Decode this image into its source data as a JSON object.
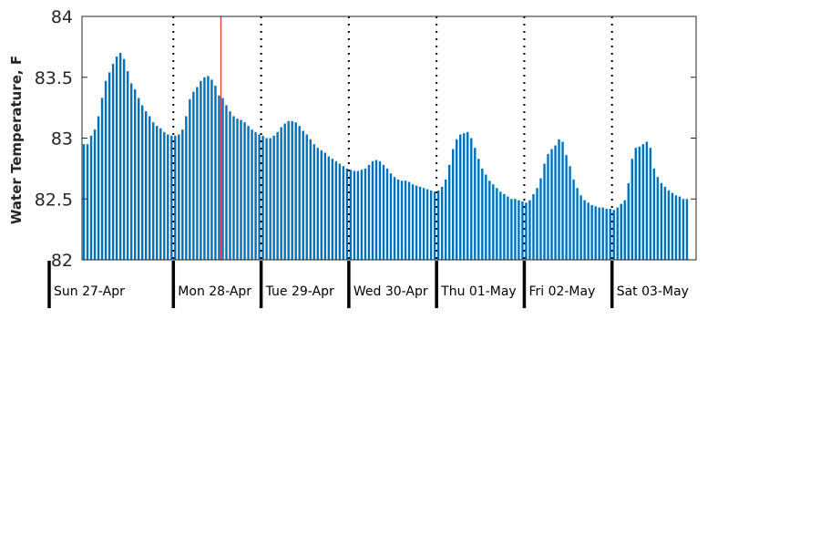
{
  "chart_data": {
    "type": "bar",
    "ylabel": "Water Temperature, F",
    "ylim": [
      82,
      84
    ],
    "yticks": [
      82,
      82.5,
      83,
      83.5,
      84
    ],
    "ytick_labels": [
      "82",
      "82.5",
      "83",
      "83.5",
      "84"
    ],
    "x_start": "2025-04-26 23:00",
    "x_end": "2025-05-03 23:00",
    "day_labels": [
      "Sun 27-Apr",
      "Mon 28-Apr",
      "Tue 29-Apr",
      "Wed 30-Apr",
      "Thu 01-May",
      "Fri 02-May",
      "Sat 03-May"
    ],
    "grid": false,
    "marker_time": "2025-04-28 13:00",
    "bar_color": "#0072bd",
    "marker_color": "#e03030",
    "series": [
      {
        "values": [
          82.95,
          82.95,
          83.02,
          83.07,
          83.18,
          83.33,
          83.47,
          83.54,
          83.61,
          83.67,
          83.7,
          83.65,
          83.55,
          83.45,
          83.4,
          83.33,
          83.27,
          83.22,
          83.18,
          83.13,
          83.1,
          83.08,
          83.05,
          83.03,
          83.02,
          83.02,
          83.03,
          83.07,
          83.18,
          83.32,
          83.38,
          83.42,
          83.47,
          83.5,
          83.51,
          83.48,
          83.43,
          83.35,
          83.33,
          83.27,
          83.22,
          83.18,
          83.16,
          83.15,
          83.13,
          83.1,
          83.07,
          83.05,
          83.03,
          83.02,
          83.0,
          83.0,
          83.02,
          83.05,
          83.09,
          83.12,
          83.14,
          83.14,
          83.13,
          83.1,
          83.06,
          83.03,
          82.99,
          82.95,
          82.92,
          82.9,
          82.88,
          82.85,
          82.83,
          82.81,
          82.79,
          82.77,
          82.75,
          82.74,
          82.73,
          82.73,
          82.74,
          82.75,
          82.78,
          82.81,
          82.82,
          82.81,
          82.78,
          82.75,
          82.71,
          82.68,
          82.66,
          82.65,
          82.65,
          82.64,
          82.62,
          82.61,
          82.6,
          82.59,
          82.58,
          82.57,
          82.56,
          82.57,
          82.6,
          82.66,
          82.78,
          82.91,
          82.99,
          83.03,
          83.04,
          83.05,
          83.0,
          82.92,
          82.83,
          82.75,
          82.7,
          82.65,
          82.62,
          82.59,
          82.56,
          82.54,
          82.52,
          82.5,
          82.5,
          82.49,
          82.48,
          82.47,
          82.49,
          82.54,
          82.59,
          82.67,
          82.79,
          82.87,
          82.91,
          82.94,
          82.99,
          82.97,
          82.86,
          82.77,
          82.66,
          82.59,
          82.53,
          82.49,
          82.47,
          82.45,
          82.44,
          82.43,
          82.43,
          82.42,
          82.42,
          82.41,
          82.43,
          82.46,
          82.49,
          82.63,
          82.83,
          82.92,
          82.93,
          82.95,
          82.97,
          82.92,
          82.75,
          82.68,
          82.63,
          82.6,
          82.57,
          82.55,
          82.53,
          82.52,
          82.5,
          82.5
        ]
      }
    ]
  }
}
